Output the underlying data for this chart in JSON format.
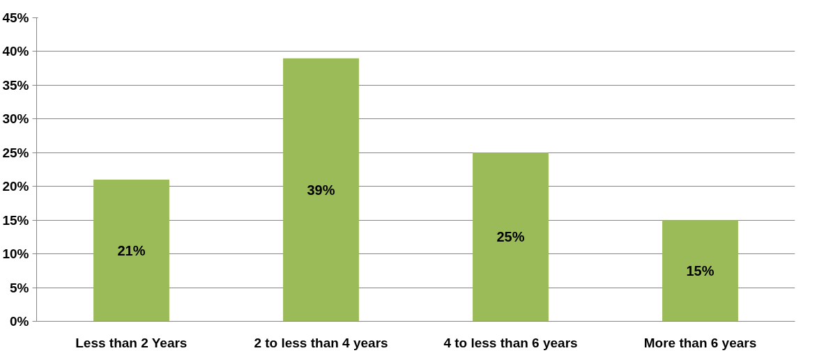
{
  "chart_data": {
    "type": "bar",
    "categories": [
      "Less than 2 Years",
      "2 to less than 4 years",
      "4 to less than 6 years",
      "More than 6 years"
    ],
    "values": [
      21,
      39,
      25,
      15
    ],
    "color": "#9bbb59",
    "value_labels": [
      "21%",
      "39%",
      "25%",
      "15%"
    ],
    "ylim": [
      0,
      45
    ],
    "yticks": [
      {
        "value": 0,
        "label": "0%"
      },
      {
        "value": 5,
        "label": "5%"
      },
      {
        "value": 10,
        "label": "10%"
      },
      {
        "value": 15,
        "label": "15%"
      },
      {
        "value": 20,
        "label": "20%"
      },
      {
        "value": 25,
        "label": "25%"
      },
      {
        "value": 30,
        "label": "30%"
      },
      {
        "value": 35,
        "label": "35%"
      },
      {
        "value": 40,
        "label": "40%"
      },
      {
        "value": 45,
        "label": "45%"
      }
    ],
    "grid": "y"
  }
}
